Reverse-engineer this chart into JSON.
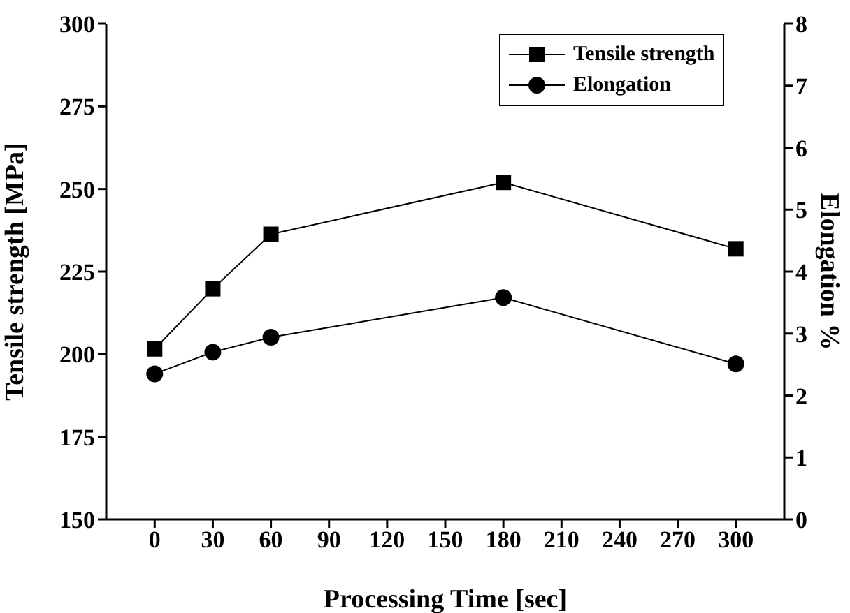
{
  "chart_data": {
    "type": "line",
    "xlabel": "Processing Time [sec]",
    "ylabel": "Tensile strength [MPa]",
    "y2label": "Elongation %",
    "x": [
      0,
      30,
      60,
      180,
      300
    ],
    "series": [
      {
        "name": "Tensile strength",
        "color": "#000000",
        "values": [
          201.6,
          219.8,
          236.3,
          252,
          231.9
        ],
        "marker": "square"
      },
      {
        "name": "Elongation",
        "color": "#000000",
        "values": [
          2.35,
          2.7,
          2.94,
          3.58,
          2.51
        ],
        "marker": "circle",
        "axis": "y2"
      }
    ],
    "xlim": [
      -25,
      325
    ],
    "xticks": [
      0,
      30,
      60,
      90,
      120,
      150,
      180,
      210,
      240,
      270,
      300
    ],
    "ylim": [
      150,
      300
    ],
    "yticks": [
      150,
      175,
      200,
      225,
      250,
      275,
      300
    ],
    "y2lim": [
      0,
      8
    ],
    "y2ticks": [
      0,
      1,
      2,
      3,
      4,
      5,
      6,
      7,
      8
    ],
    "legend": "top right",
    "grid": false,
    "line_style": "solid"
  }
}
